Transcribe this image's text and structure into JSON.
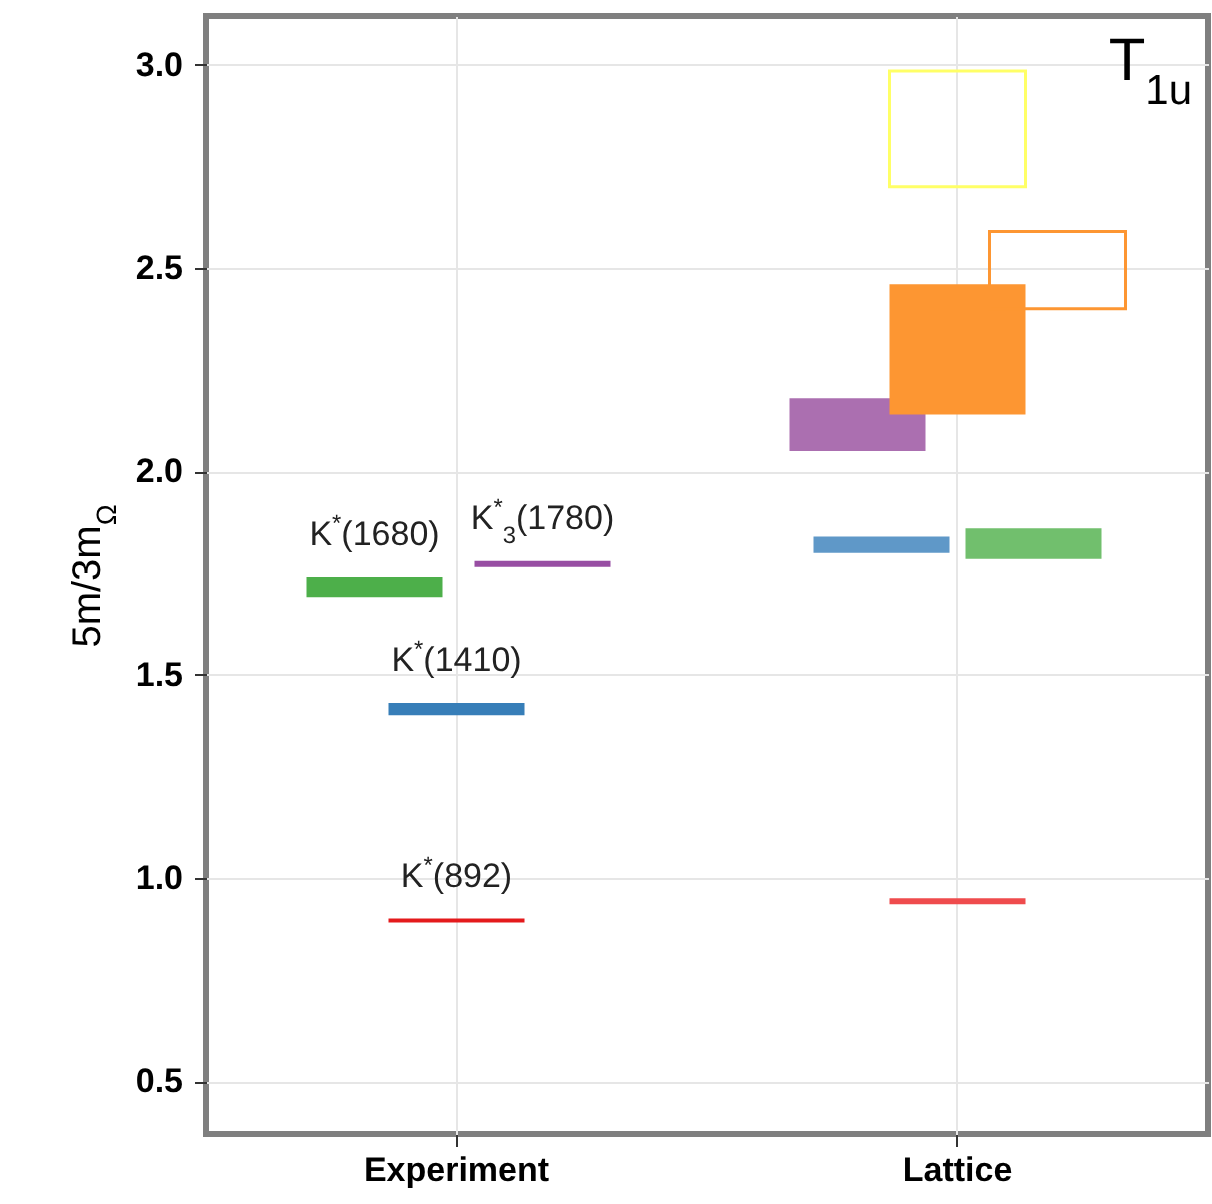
{
  "chart_data": {
    "type": "bar",
    "ylabel": "5m/3m$_{Ω}$",
    "annotations": [
      "T$_{1u}$"
    ],
    "categories": [
      "Experiment",
      "Lattice"
    ],
    "ylim": [
      0.37,
      3.12
    ],
    "yticks": [
      0.5,
      {
        "value": 1,
        "label": "1.0"
      },
      1.5,
      {
        "value": 2,
        "label": "2.0"
      },
      2.5,
      {
        "value": 3,
        "label": "3.0"
      }
    ],
    "grid": true,
    "series": [
      {
        "name": "K$^{*}$(1680)",
        "color": "#4daf4a",
        "values": [
          0.05,
          null
        ],
        "base": [
          1.69,
          null
        ]
      },
      {
        "name": "K$^{*}$$_{3}$(1780)",
        "color": "#984ea3",
        "values": [
          0.015,
          null
        ],
        "base": [
          1.765,
          null
        ]
      },
      {
        "name": "K$^{*}$(1410)",
        "color": "#377eb8",
        "values": [
          0.03,
          null
        ],
        "base": [
          1.4,
          null
        ]
      },
      {
        "name": "K$^{*}$(892)",
        "color": "#e41a1c",
        "values": [
          0.01,
          null
        ],
        "base": [
          0.89,
          null
        ]
      },
      {
        "color": "#ab6fb0",
        "values": [
          null,
          0.13
        ],
        "base": [
          null,
          2.05
        ]
      },
      {
        "color": "#fd9632",
        "values": [
          null,
          0.32
        ],
        "base": [
          null,
          2.14
        ]
      },
      {
        "color": "#ffff66",
        "values": [
          null,
          0.285
        ],
        "base": [
          null,
          2.7
        ],
        "line_style": "solid"
      },
      {
        "color": "#fd9632",
        "values": [
          null,
          0.19
        ],
        "base": [
          null,
          2.4
        ],
        "line_style": "solid"
      },
      {
        "color": "#5f98c8",
        "values": [
          null,
          0.04
        ],
        "base": [
          null,
          1.8
        ]
      },
      {
        "color": "#71bf6d",
        "values": [
          null,
          0.075
        ],
        "base": [
          null,
          1.785
        ]
      },
      {
        "color": "#ef4b4d",
        "values": [
          null,
          0.015
        ],
        "base": [
          null,
          0.935
        ]
      }
    ]
  }
}
